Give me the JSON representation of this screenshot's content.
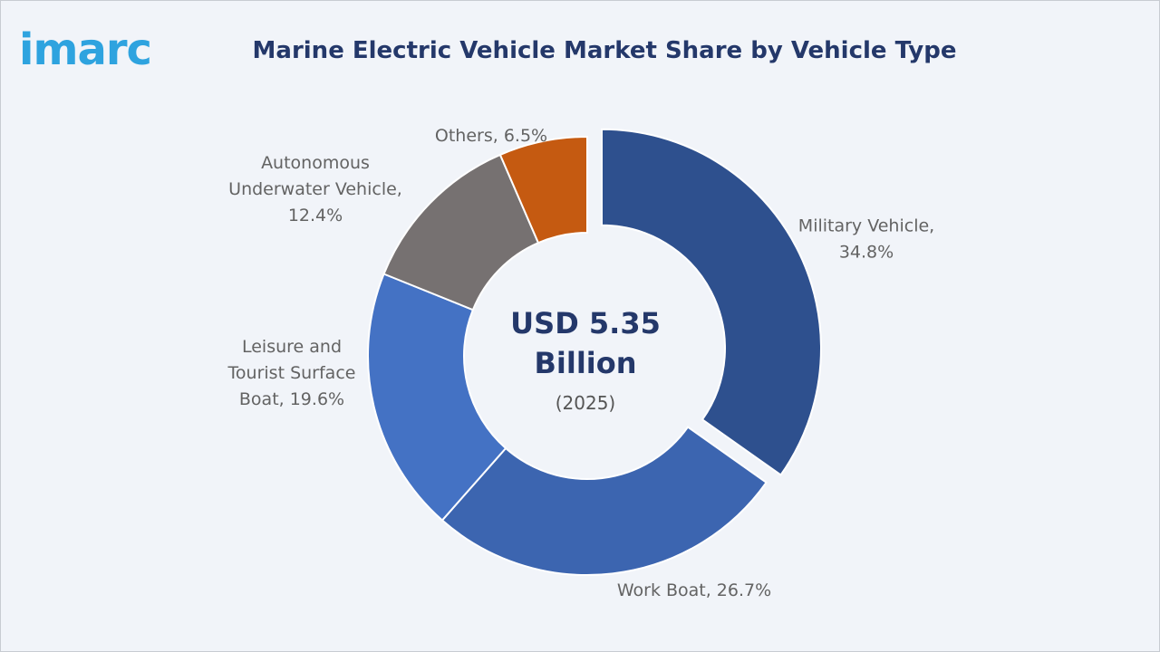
{
  "logo": {
    "text": "imarc",
    "color": "#2ea3df"
  },
  "chart_data": {
    "type": "pie",
    "style": "donut",
    "title": "Marine Electric Vehicle Market Share by Vehicle Type",
    "center_label": {
      "value": "USD 5.35",
      "unit": "Billion",
      "year": "(2025)"
    },
    "unit": "%",
    "slices": [
      {
        "name": "Military Vehicle",
        "label_lines": [
          "Military Vehicle,",
          "34.8%"
        ],
        "value": 34.8,
        "color": "#2e508e",
        "exploded": true
      },
      {
        "name": "Work Boat",
        "label_lines": [
          "Work Boat, 26.7%"
        ],
        "value": 26.7,
        "color": "#3c65b0",
        "exploded": false
      },
      {
        "name": "Leisure and Tourist Surface Boat",
        "label_lines": [
          "Leisure and",
          "Tourist Surface",
          "Boat, 19.6%"
        ],
        "value": 19.6,
        "color": "#4472c4",
        "exploded": false
      },
      {
        "name": "Autonomous Underwater Vehicle",
        "label_lines": [
          "Autonomous",
          "Underwater Vehicle,",
          "12.4%"
        ],
        "value": 12.4,
        "color": "#767171",
        "exploded": false
      },
      {
        "name": "Others",
        "label_lines": [
          "Others, 6.5%"
        ],
        "value": 6.5,
        "color": "#c55a11",
        "exploded": false
      }
    ]
  }
}
